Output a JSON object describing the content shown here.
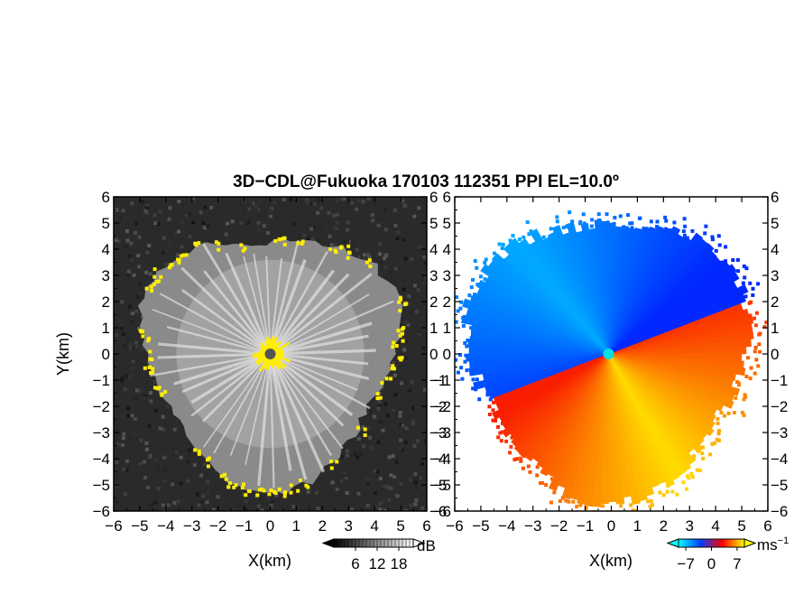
{
  "figure": {
    "title": "3D−CDL@Fukuoka 170103 112351 PPI EL=10.0º"
  },
  "chart_data": [
    {
      "type": "heatmap",
      "panel": "left",
      "xlabel": "X(km)",
      "ylabel": "Y(km)",
      "xlim": [
        -6,
        6
      ],
      "ylim": [
        -6,
        6
      ],
      "xticks": [
        "−6",
        "−5",
        "−4",
        "−3",
        "−2",
        "−1",
        "0",
        "1",
        "2",
        "3",
        "4",
        "5",
        "6"
      ],
      "yticks": [
        "−6",
        "−5",
        "−4",
        "−3",
        "−2",
        "−1",
        "0",
        "1",
        "2",
        "3",
        "4",
        "5",
        "6"
      ],
      "colorbar": {
        "unit": "dB",
        "ticks": [
          "6",
          "12",
          "18"
        ],
        "range": [
          0,
          22
        ],
        "palette": [
          "#000000",
          "#ffffff"
        ]
      },
      "echo_radius_km": 5.0,
      "highlight_color": "#ffee00",
      "background_color": "#2a2a2a",
      "grid": false
    },
    {
      "type": "heatmap",
      "panel": "right",
      "xlabel": "X(km)",
      "ylabel": "",
      "xlim": [
        -6,
        6
      ],
      "ylim": [
        -6,
        6
      ],
      "xticks": [
        "−6",
        "−5",
        "−4",
        "−3",
        "−2",
        "−1",
        "0",
        "1",
        "2",
        "3",
        "4",
        "5",
        "6"
      ],
      "yticks": [
        "−6",
        "−5",
        "−4",
        "−3",
        "−2",
        "−1",
        "0",
        "1",
        "2",
        "3",
        "4",
        "5",
        "6"
      ],
      "colorbar": {
        "unit": "ms",
        "unit_exponent": "−1",
        "ticks": [
          "−7",
          "0",
          "7"
        ],
        "range": [
          -9,
          9
        ],
        "palette": [
          "#00ffff",
          "#0040ff",
          "#ff0000",
          "#ffff00"
        ]
      },
      "echo_radius_km": 5.3,
      "center_color": "#00e0e0",
      "background_color": "#ffffff",
      "grid": false
    }
  ]
}
